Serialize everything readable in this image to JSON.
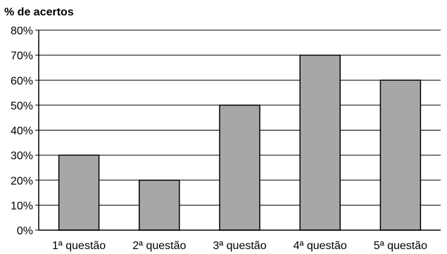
{
  "chart_data": {
    "type": "bar",
    "title": "",
    "ylabel": "% de acertos",
    "xlabel": "",
    "categories": [
      "1ª questão",
      "2ª questão",
      "3ª questão",
      "4ª questão",
      "5ª questão"
    ],
    "values": [
      30,
      20,
      50,
      70,
      60
    ],
    "ylim": [
      0,
      80
    ],
    "yticks": [
      0,
      10,
      20,
      30,
      40,
      50,
      60,
      70,
      80
    ],
    "ytick_labels": [
      "0%",
      "10%",
      "20%",
      "30%",
      "40%",
      "50%",
      "60%",
      "70%",
      "80%"
    ],
    "grid": true,
    "bar_color": "#a7a7a9",
    "bar_stroke": "#000000",
    "grid_color": "#000000"
  }
}
